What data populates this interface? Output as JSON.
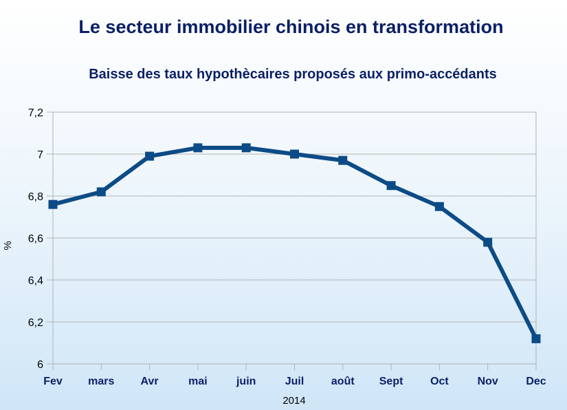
{
  "chart_data": {
    "type": "line",
    "title": "Le secteur immobilier chinois en transformation",
    "subtitle": "Baisse des taux hypothècaires proposés aux primo-accédants",
    "xlabel": "2014",
    "ylabel": "%",
    "categories": [
      "Fev",
      "mars",
      "Avr",
      "mai",
      "juin",
      "Juil",
      "août",
      "Sept",
      "Oct",
      "Nov",
      "Dec"
    ],
    "series": [
      {
        "values": [
          6.76,
          6.82,
          6.99,
          7.03,
          7.03,
          7.0,
          6.97,
          6.85,
          6.75,
          6.58,
          6.12
        ]
      }
    ],
    "ylim": [
      6,
      7.2
    ],
    "yticks": [
      6,
      6.2,
      6.4,
      6.6,
      6.8,
      7,
      7.2
    ],
    "yticks_labels": [
      "6",
      "6,2",
      "6,4",
      "6,6",
      "6,8",
      "7",
      "7,2"
    ],
    "grid": true,
    "legend": "none",
    "line_color": "#0d4b86",
    "title_color": "#0b1f66"
  }
}
